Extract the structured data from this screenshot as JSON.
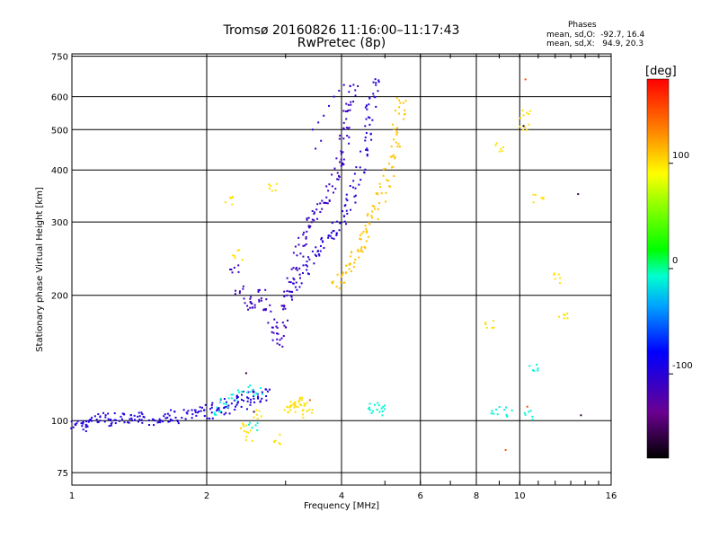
{
  "title": {
    "line1": "Tromsø 20160826 11:16:00–11:17:43",
    "line2": "RwPretec (8p)"
  },
  "stats": {
    "heading": "Phases",
    "line1": "mean, sd,O:  -92.7, 16.4",
    "line2": "mean, sd,X:   94.9, 20.3"
  },
  "chart_data": {
    "type": "scatter",
    "xlabel": "Frequency [MHz]",
    "ylabel": "Stationary phase Virtual Height [km]",
    "xscale": "log",
    "yscale": "log",
    "xlim": [
      1,
      16
    ],
    "ylim": [
      70,
      760
    ],
    "x_ticks": [
      1,
      2,
      4,
      6,
      8,
      10,
      16
    ],
    "y_ticks": [
      75,
      100,
      200,
      300,
      400,
      500,
      600,
      750
    ],
    "grid": true,
    "colorbar": {
      "unit": "[deg]",
      "range": [
        -180,
        180
      ],
      "ticks": [
        100,
        0,
        -100
      ]
    },
    "series": [
      {
        "color_value": -95,
        "points": [
          [
            1.02,
            98
          ],
          [
            1.05,
            97
          ],
          [
            1.08,
            98
          ],
          [
            1.1,
            99
          ],
          [
            1.13,
            100
          ],
          [
            1.16,
            102
          ],
          [
            1.2,
            101
          ],
          [
            1.24,
            100
          ],
          [
            1.28,
            102
          ],
          [
            1.33,
            101
          ],
          [
            1.38,
            100
          ],
          [
            1.42,
            102
          ],
          [
            1.47,
            101
          ],
          [
            1.52,
            100
          ],
          [
            1.57,
            102
          ],
          [
            1.62,
            101
          ],
          [
            1.68,
            103
          ],
          [
            1.75,
            101
          ],
          [
            1.82,
            104
          ],
          [
            1.9,
            103
          ],
          [
            1.95,
            106
          ],
          [
            2.02,
            104
          ],
          [
            2.08,
            108
          ],
          [
            2.15,
            105
          ],
          [
            2.2,
            110
          ],
          [
            2.27,
            107
          ],
          [
            2.34,
            112
          ],
          [
            2.4,
            109
          ],
          [
            2.46,
            114
          ],
          [
            2.53,
            112
          ],
          [
            2.6,
            116
          ],
          [
            2.66,
            113
          ],
          [
            2.72,
            117
          ]
        ]
      },
      {
        "color_value": -110,
        "points": [
          [
            2.32,
            230
          ],
          [
            2.38,
            205
          ],
          [
            2.45,
            195
          ],
          [
            2.52,
            188
          ],
          [
            2.6,
            192
          ],
          [
            2.68,
            200
          ],
          [
            2.75,
            185
          ],
          [
            2.8,
            170
          ],
          [
            2.84,
            160
          ],
          [
            2.9,
            155
          ],
          [
            2.95,
            170
          ],
          [
            3.0,
            185
          ],
          [
            3.05,
            200
          ],
          [
            3.1,
            215
          ],
          [
            3.15,
            235
          ],
          [
            3.2,
            255
          ],
          [
            3.28,
            270
          ],
          [
            3.35,
            285
          ],
          [
            3.42,
            300
          ],
          [
            3.5,
            312
          ],
          [
            3.6,
            325
          ],
          [
            3.7,
            342
          ],
          [
            3.8,
            362
          ],
          [
            3.88,
            385
          ],
          [
            3.95,
            410
          ],
          [
            4.0,
            435
          ],
          [
            4.05,
            470
          ],
          [
            4.1,
            505
          ],
          [
            4.15,
            545
          ],
          [
            4.2,
            590
          ],
          [
            4.25,
            630
          ]
        ]
      },
      {
        "color_value": -100,
        "points": [
          [
            3.1,
            200
          ],
          [
            3.2,
            215
          ],
          [
            3.3,
            230
          ],
          [
            3.4,
            240
          ],
          [
            3.5,
            255
          ],
          [
            3.6,
            262
          ],
          [
            3.7,
            270
          ],
          [
            3.8,
            280
          ],
          [
            3.9,
            290
          ],
          [
            4.0,
            305
          ],
          [
            4.1,
            320
          ],
          [
            4.2,
            340
          ],
          [
            4.3,
            370
          ],
          [
            4.4,
            400
          ],
          [
            4.5,
            440
          ],
          [
            4.55,
            480
          ],
          [
            4.6,
            520
          ],
          [
            4.65,
            560
          ],
          [
            4.7,
            610
          ],
          [
            4.72,
            650
          ]
        ]
      },
      {
        "color_value": -105,
        "points": [
          [
            3.45,
            500
          ],
          [
            3.55,
            520
          ],
          [
            3.65,
            540
          ],
          [
            3.75,
            570
          ],
          [
            3.85,
            600
          ],
          [
            3.95,
            620
          ],
          [
            4.05,
            640
          ],
          [
            3.6,
            470
          ],
          [
            3.5,
            450
          ]
        ]
      },
      {
        "color_value": 110,
        "points": [
          [
            3.9,
            210
          ],
          [
            4.0,
            220
          ],
          [
            4.1,
            230
          ],
          [
            4.2,
            240
          ],
          [
            4.3,
            250
          ],
          [
            4.4,
            262
          ],
          [
            4.5,
            275
          ],
          [
            4.6,
            290
          ],
          [
            4.7,
            305
          ],
          [
            4.8,
            325
          ],
          [
            4.9,
            345
          ],
          [
            5.0,
            370
          ],
          [
            5.1,
            395
          ],
          [
            5.2,
            425
          ],
          [
            5.3,
            460
          ],
          [
            5.35,
            500
          ],
          [
            5.4,
            540
          ],
          [
            5.45,
            580
          ]
        ]
      },
      {
        "color_value": 100,
        "points": [
          [
            3.05,
            106
          ],
          [
            3.1,
            108
          ],
          [
            3.15,
            110
          ],
          [
            3.2,
            107
          ],
          [
            3.25,
            111
          ],
          [
            3.3,
            109
          ],
          [
            3.35,
            104
          ],
          [
            2.4,
            96
          ],
          [
            2.5,
            92
          ],
          [
            2.9,
            90
          ],
          [
            2.6,
            103
          ],
          [
            10.2,
            500
          ],
          [
            10.3,
            540
          ],
          [
            11.0,
            340
          ],
          [
            12.0,
            220
          ],
          [
            12.5,
            180
          ],
          [
            9.0,
            450
          ],
          [
            8.6,
            170
          ],
          [
            2.25,
            340
          ],
          [
            2.35,
            250
          ],
          [
            2.8,
            360
          ]
        ]
      },
      {
        "color_value": -10,
        "points": [
          [
            2.1,
            105
          ],
          [
            2.2,
            110
          ],
          [
            2.3,
            115
          ],
          [
            2.45,
            120
          ],
          [
            2.6,
            118
          ],
          [
            4.7,
            107
          ],
          [
            4.8,
            108
          ],
          [
            4.9,
            106
          ],
          [
            9.5,
            105
          ],
          [
            10.5,
            103
          ],
          [
            8.8,
            105
          ],
          [
            10.7,
            135
          ],
          [
            2.55,
            96
          ]
        ]
      },
      {
        "color_value": 150,
        "points": [
          [
            10.3,
            660
          ],
          [
            9.3,
            85
          ],
          [
            10.4,
            108
          ],
          [
            3.4,
            112
          ]
        ]
      },
      {
        "color_value": -160,
        "points": [
          [
            10.2,
            510
          ],
          [
            13.5,
            350
          ],
          [
            13.7,
            103
          ],
          [
            2.45,
            130
          ],
          [
            2.55,
            105
          ]
        ]
      }
    ]
  }
}
